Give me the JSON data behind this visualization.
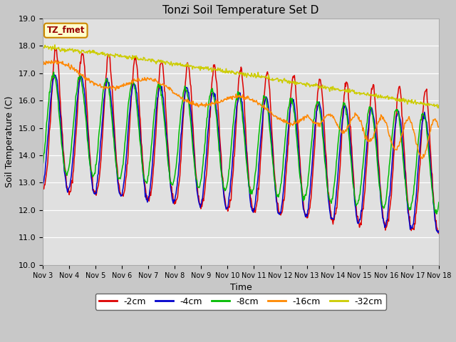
{
  "title": "Tonzi Soil Temperature Set D",
  "xlabel": "Time",
  "ylabel": "Soil Temperature (C)",
  "ylim": [
    10.0,
    19.0
  ],
  "yticks": [
    10.0,
    11.0,
    12.0,
    13.0,
    14.0,
    15.0,
    16.0,
    17.0,
    18.0,
    19.0
  ],
  "xtick_labels": [
    "Nov 3",
    "Nov 4",
    "Nov 5",
    "Nov 6",
    "Nov 7",
    "Nov 8",
    "Nov 9",
    "Nov 10",
    "Nov 11",
    "Nov 12",
    "Nov 13",
    "Nov 14",
    "Nov 15",
    "Nov 16",
    "Nov 17",
    "Nov 18"
  ],
  "legend_entries": [
    "-2cm",
    "-4cm",
    "-8cm",
    "-16cm",
    "-32cm"
  ],
  "line_colors": [
    "#dd0000",
    "#0000cc",
    "#00bb00",
    "#ff8800",
    "#cccc00"
  ],
  "annotation_text": "TZ_fmet",
  "annotation_color": "#990000",
  "annotation_bg": "#ffffcc",
  "annotation_edge": "#cc8800",
  "fig_bg": "#c8c8c8",
  "plot_bg": "#e0e0e0",
  "n_days": 15,
  "n_pts_per_day": 48,
  "figsize": [
    6.4,
    4.8
  ],
  "dpi": 100
}
